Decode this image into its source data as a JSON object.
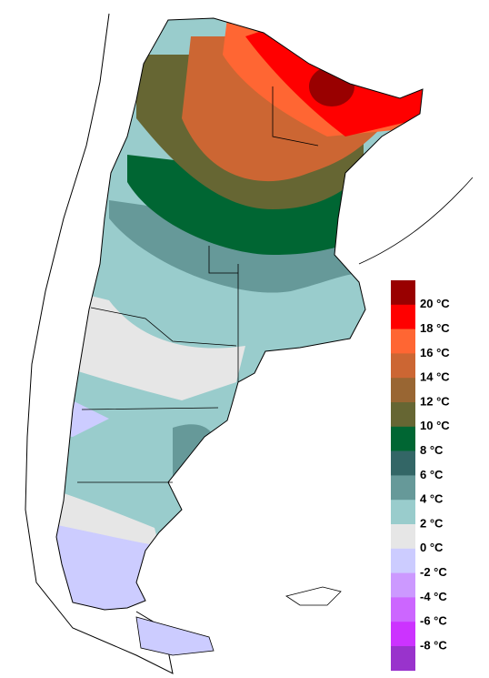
{
  "legend": {
    "colors": [
      "#990000",
      "#ff0000",
      "#ff6633",
      "#cc6633",
      "#996633",
      "#666633",
      "#006633",
      "#336666",
      "#669999",
      "#99cccc",
      "#e6e6e6",
      "#ccccff",
      "#cc99ff",
      "#cc66ff",
      "#cc33ff",
      "#9933cc"
    ],
    "labels": [
      "20 °C",
      "18 °C",
      "16 °C",
      "14 °C",
      "12 °C",
      "10 °C",
      "8 °C",
      "6 °C",
      "4 °C",
      "2 °C",
      "0 °C",
      "-2 °C",
      "-4 °C",
      "-6 °C",
      "-8 °C"
    ]
  }
}
